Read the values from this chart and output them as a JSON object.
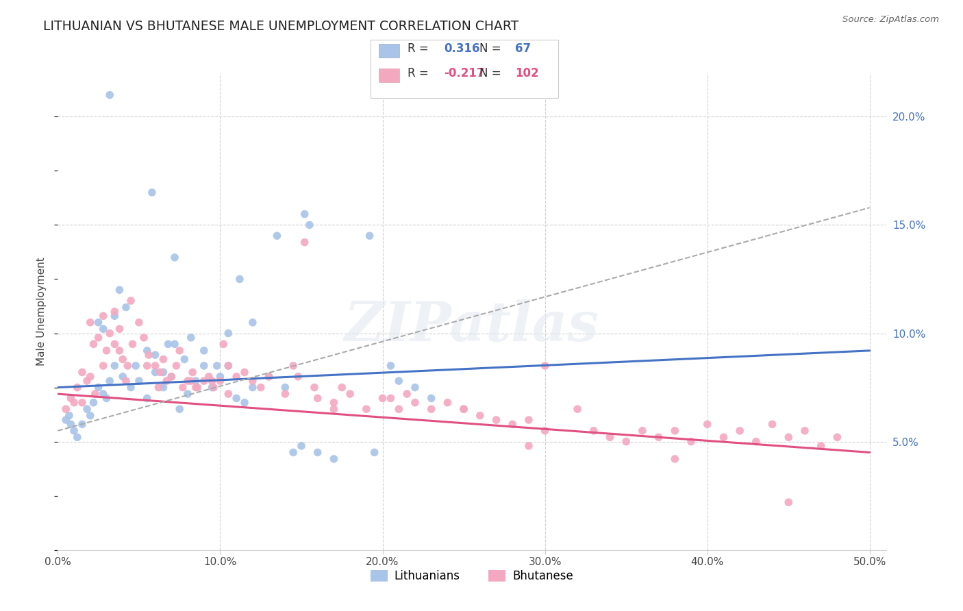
{
  "title": "LITHUANIAN VS BHUTANESE MALE UNEMPLOYMENT CORRELATION CHART",
  "source": "Source: ZipAtlas.com",
  "ylabel": "Male Unemployment",
  "watermark_text": "ZIPatlas",
  "blue_color": "#a8c4e8",
  "pink_color": "#f4a8c0",
  "blue_R": "0.316",
  "blue_N": "67",
  "pink_R": "-0.217",
  "pink_N": "102",
  "blue_line_color": "#4472c4",
  "pink_line_color": "#e05080",
  "gray_dash_color": "#aaaaaa",
  "ylabel_ticks": [
    "5.0%",
    "10.0%",
    "15.0%",
    "20.0%"
  ],
  "ylabel_vals": [
    5,
    10,
    15,
    20
  ],
  "xlabel_ticks": [
    "0.0%",
    "10.0%",
    "20.0%",
    "30.0%",
    "40.0%",
    "50.0%"
  ],
  "xlabel_vals": [
    0,
    10,
    20,
    30,
    40,
    50
  ],
  "blue_scatter_x": [
    2.5,
    2.8,
    3.5,
    4.2,
    4.8,
    5.5,
    6.0,
    6.5,
    7.2,
    7.8,
    8.2,
    9.0,
    9.8,
    10.5,
    11.2,
    12.0,
    13.5,
    15.2,
    19.2,
    0.5,
    0.7,
    0.8,
    1.0,
    1.2,
    1.5,
    1.8,
    2.0,
    2.2,
    2.5,
    2.8,
    3.0,
    3.2,
    3.5,
    4.0,
    4.5,
    5.0,
    5.5,
    6.0,
    6.5,
    7.0,
    7.5,
    8.0,
    8.5,
    9.0,
    9.5,
    10.0,
    10.5,
    11.0,
    11.5,
    12.0,
    13.0,
    14.0,
    14.5,
    15.0,
    16.0,
    17.0,
    19.5,
    3.8,
    6.8,
    20.5,
    21.0,
    22.0,
    23.0,
    15.5,
    3.2,
    5.8,
    7.2
  ],
  "blue_scatter_y": [
    10.5,
    10.2,
    10.8,
    11.2,
    8.5,
    9.2,
    9.0,
    8.2,
    9.5,
    8.8,
    9.8,
    9.2,
    8.5,
    10.0,
    12.5,
    10.5,
    14.5,
    15.5,
    14.5,
    6.0,
    6.2,
    5.8,
    5.5,
    5.2,
    5.8,
    6.5,
    6.2,
    6.8,
    7.5,
    7.2,
    7.0,
    7.8,
    8.5,
    8.0,
    7.5,
    7.8,
    7.0,
    8.2,
    7.5,
    8.0,
    6.5,
    7.2,
    7.8,
    8.5,
    7.5,
    8.0,
    8.5,
    7.0,
    6.8,
    7.5,
    8.0,
    7.5,
    4.5,
    4.8,
    4.5,
    4.2,
    4.5,
    12.0,
    9.5,
    8.5,
    7.8,
    7.5,
    7.0,
    15.0,
    21.0,
    16.5,
    13.5
  ],
  "pink_scatter_x": [
    0.5,
    0.8,
    1.0,
    1.2,
    1.5,
    1.8,
    2.0,
    2.2,
    2.5,
    2.8,
    3.0,
    3.2,
    3.5,
    3.8,
    4.0,
    4.3,
    4.6,
    5.0,
    5.3,
    5.6,
    6.0,
    6.3,
    6.7,
    7.0,
    7.3,
    7.7,
    8.0,
    8.3,
    8.6,
    9.0,
    9.3,
    9.6,
    10.0,
    10.5,
    11.0,
    11.5,
    12.0,
    12.5,
    13.0,
    14.0,
    14.5,
    15.2,
    16.0,
    17.0,
    17.5,
    18.0,
    19.0,
    20.0,
    21.0,
    21.5,
    22.0,
    23.0,
    24.0,
    25.0,
    26.0,
    27.0,
    28.0,
    29.0,
    30.0,
    32.0,
    33.0,
    34.0,
    35.0,
    36.0,
    37.0,
    38.0,
    39.0,
    40.0,
    41.0,
    42.0,
    43.0,
    44.0,
    45.0,
    46.0,
    47.0,
    48.0,
    30.0,
    8.5,
    9.5,
    10.2,
    17.0,
    20.5,
    25.0,
    3.5,
    4.5,
    2.0,
    2.8,
    3.8,
    5.5,
    6.5,
    7.5,
    14.8,
    15.8,
    1.5,
    2.3,
    4.2,
    6.2,
    8.2,
    10.5,
    29.0,
    38.0,
    45.0
  ],
  "pink_scatter_y": [
    6.5,
    7.0,
    6.8,
    7.5,
    8.2,
    7.8,
    8.0,
    9.5,
    9.8,
    8.5,
    9.2,
    10.0,
    9.5,
    9.2,
    8.8,
    8.5,
    9.5,
    10.5,
    9.8,
    9.0,
    8.5,
    8.2,
    7.8,
    8.0,
    8.5,
    7.5,
    7.8,
    8.2,
    7.5,
    7.8,
    8.0,
    7.5,
    7.8,
    8.5,
    8.0,
    8.2,
    7.8,
    7.5,
    8.0,
    7.2,
    8.5,
    14.2,
    7.0,
    6.8,
    7.5,
    7.2,
    6.5,
    7.0,
    6.5,
    7.2,
    6.8,
    6.5,
    6.8,
    6.5,
    6.2,
    6.0,
    5.8,
    6.0,
    5.5,
    6.5,
    5.5,
    5.2,
    5.0,
    5.5,
    5.2,
    5.5,
    5.0,
    5.8,
    5.2,
    5.5,
    5.0,
    5.8,
    5.2,
    5.5,
    4.8,
    5.2,
    8.5,
    7.5,
    7.8,
    9.5,
    6.5,
    7.0,
    6.5,
    11.0,
    11.5,
    10.5,
    10.8,
    10.2,
    8.5,
    8.8,
    9.2,
    8.0,
    7.5,
    6.8,
    7.2,
    7.8,
    7.5,
    7.8,
    7.2,
    4.8,
    4.2,
    2.2
  ],
  "blue_trend_x0": 0,
  "blue_trend_x1": 50,
  "blue_trend_y0": 7.5,
  "blue_trend_y1": 9.2,
  "pink_trend_x0": 0,
  "pink_trend_x1": 50,
  "pink_trend_y0": 7.2,
  "pink_trend_y1": 4.5,
  "gray_dash_x0": 0,
  "gray_dash_x1": 50,
  "gray_dash_y0": 5.5,
  "gray_dash_y1": 15.8,
  "xlim": [
    0,
    51
  ],
  "ylim": [
    0,
    22
  ],
  "background_color": "#ffffff",
  "grid_color": "#d0d0d0",
  "legend_blue_label": "Lithuanians",
  "legend_pink_label": "Bhutanese"
}
